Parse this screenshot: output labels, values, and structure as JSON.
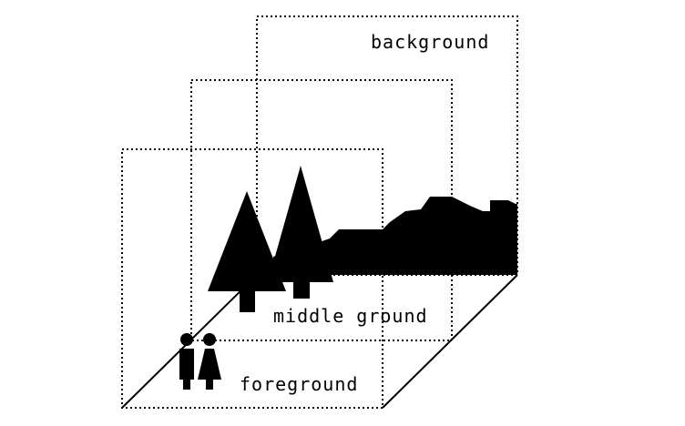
{
  "labels": {
    "background": "background",
    "middle_ground": "middle ground",
    "foreground": "foreground"
  },
  "colors": {
    "ink": "#000000",
    "paper": "#ffffff"
  },
  "icons": [
    "tree-icon",
    "hills-silhouette",
    "person-icon"
  ]
}
